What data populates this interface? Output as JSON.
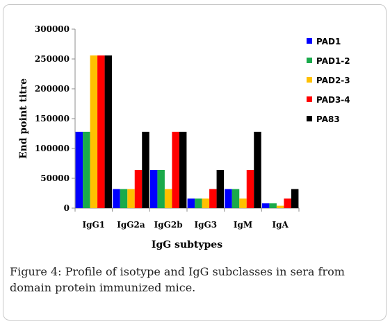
{
  "caption": {
    "label": "Figure 4:",
    "text": " Profile of isotype and IgG subclasses in sera from domain protein immunized mice."
  },
  "chart_data": {
    "type": "bar",
    "title": "",
    "xlabel": "IgG subtypes",
    "ylabel": "End point titre",
    "ylim": [
      0,
      300000
    ],
    "yticks": [
      0,
      50000,
      100000,
      150000,
      200000,
      250000,
      300000
    ],
    "ytick_labels": [
      "0",
      "50000",
      "100000",
      "150000",
      "200000",
      "250000",
      "300000"
    ],
    "grid": false,
    "legend_position": "right",
    "categories": [
      "IgG1",
      "IgG2a",
      "IgG2b",
      "IgG3",
      "IgM",
      "IgA"
    ],
    "series": [
      {
        "name": "PAD1",
        "color": "#0000ff",
        "values": [
          128000,
          32000,
          64000,
          16000,
          32000,
          8000
        ]
      },
      {
        "name": "PAD1-2",
        "color": "#1aaa4b",
        "values": [
          128000,
          32000,
          64000,
          16000,
          32000,
          8000
        ]
      },
      {
        "name": "PAD2-3",
        "color": "#ffc000",
        "values": [
          256000,
          32000,
          32000,
          16000,
          16000,
          4000
        ]
      },
      {
        "name": "PAD3-4",
        "color": "#ff0000",
        "values": [
          256000,
          64000,
          128000,
          32000,
          64000,
          16000
        ]
      },
      {
        "name": "PA83",
        "color": "#000000",
        "values": [
          256000,
          128000,
          128000,
          64000,
          128000,
          32000
        ]
      }
    ]
  }
}
